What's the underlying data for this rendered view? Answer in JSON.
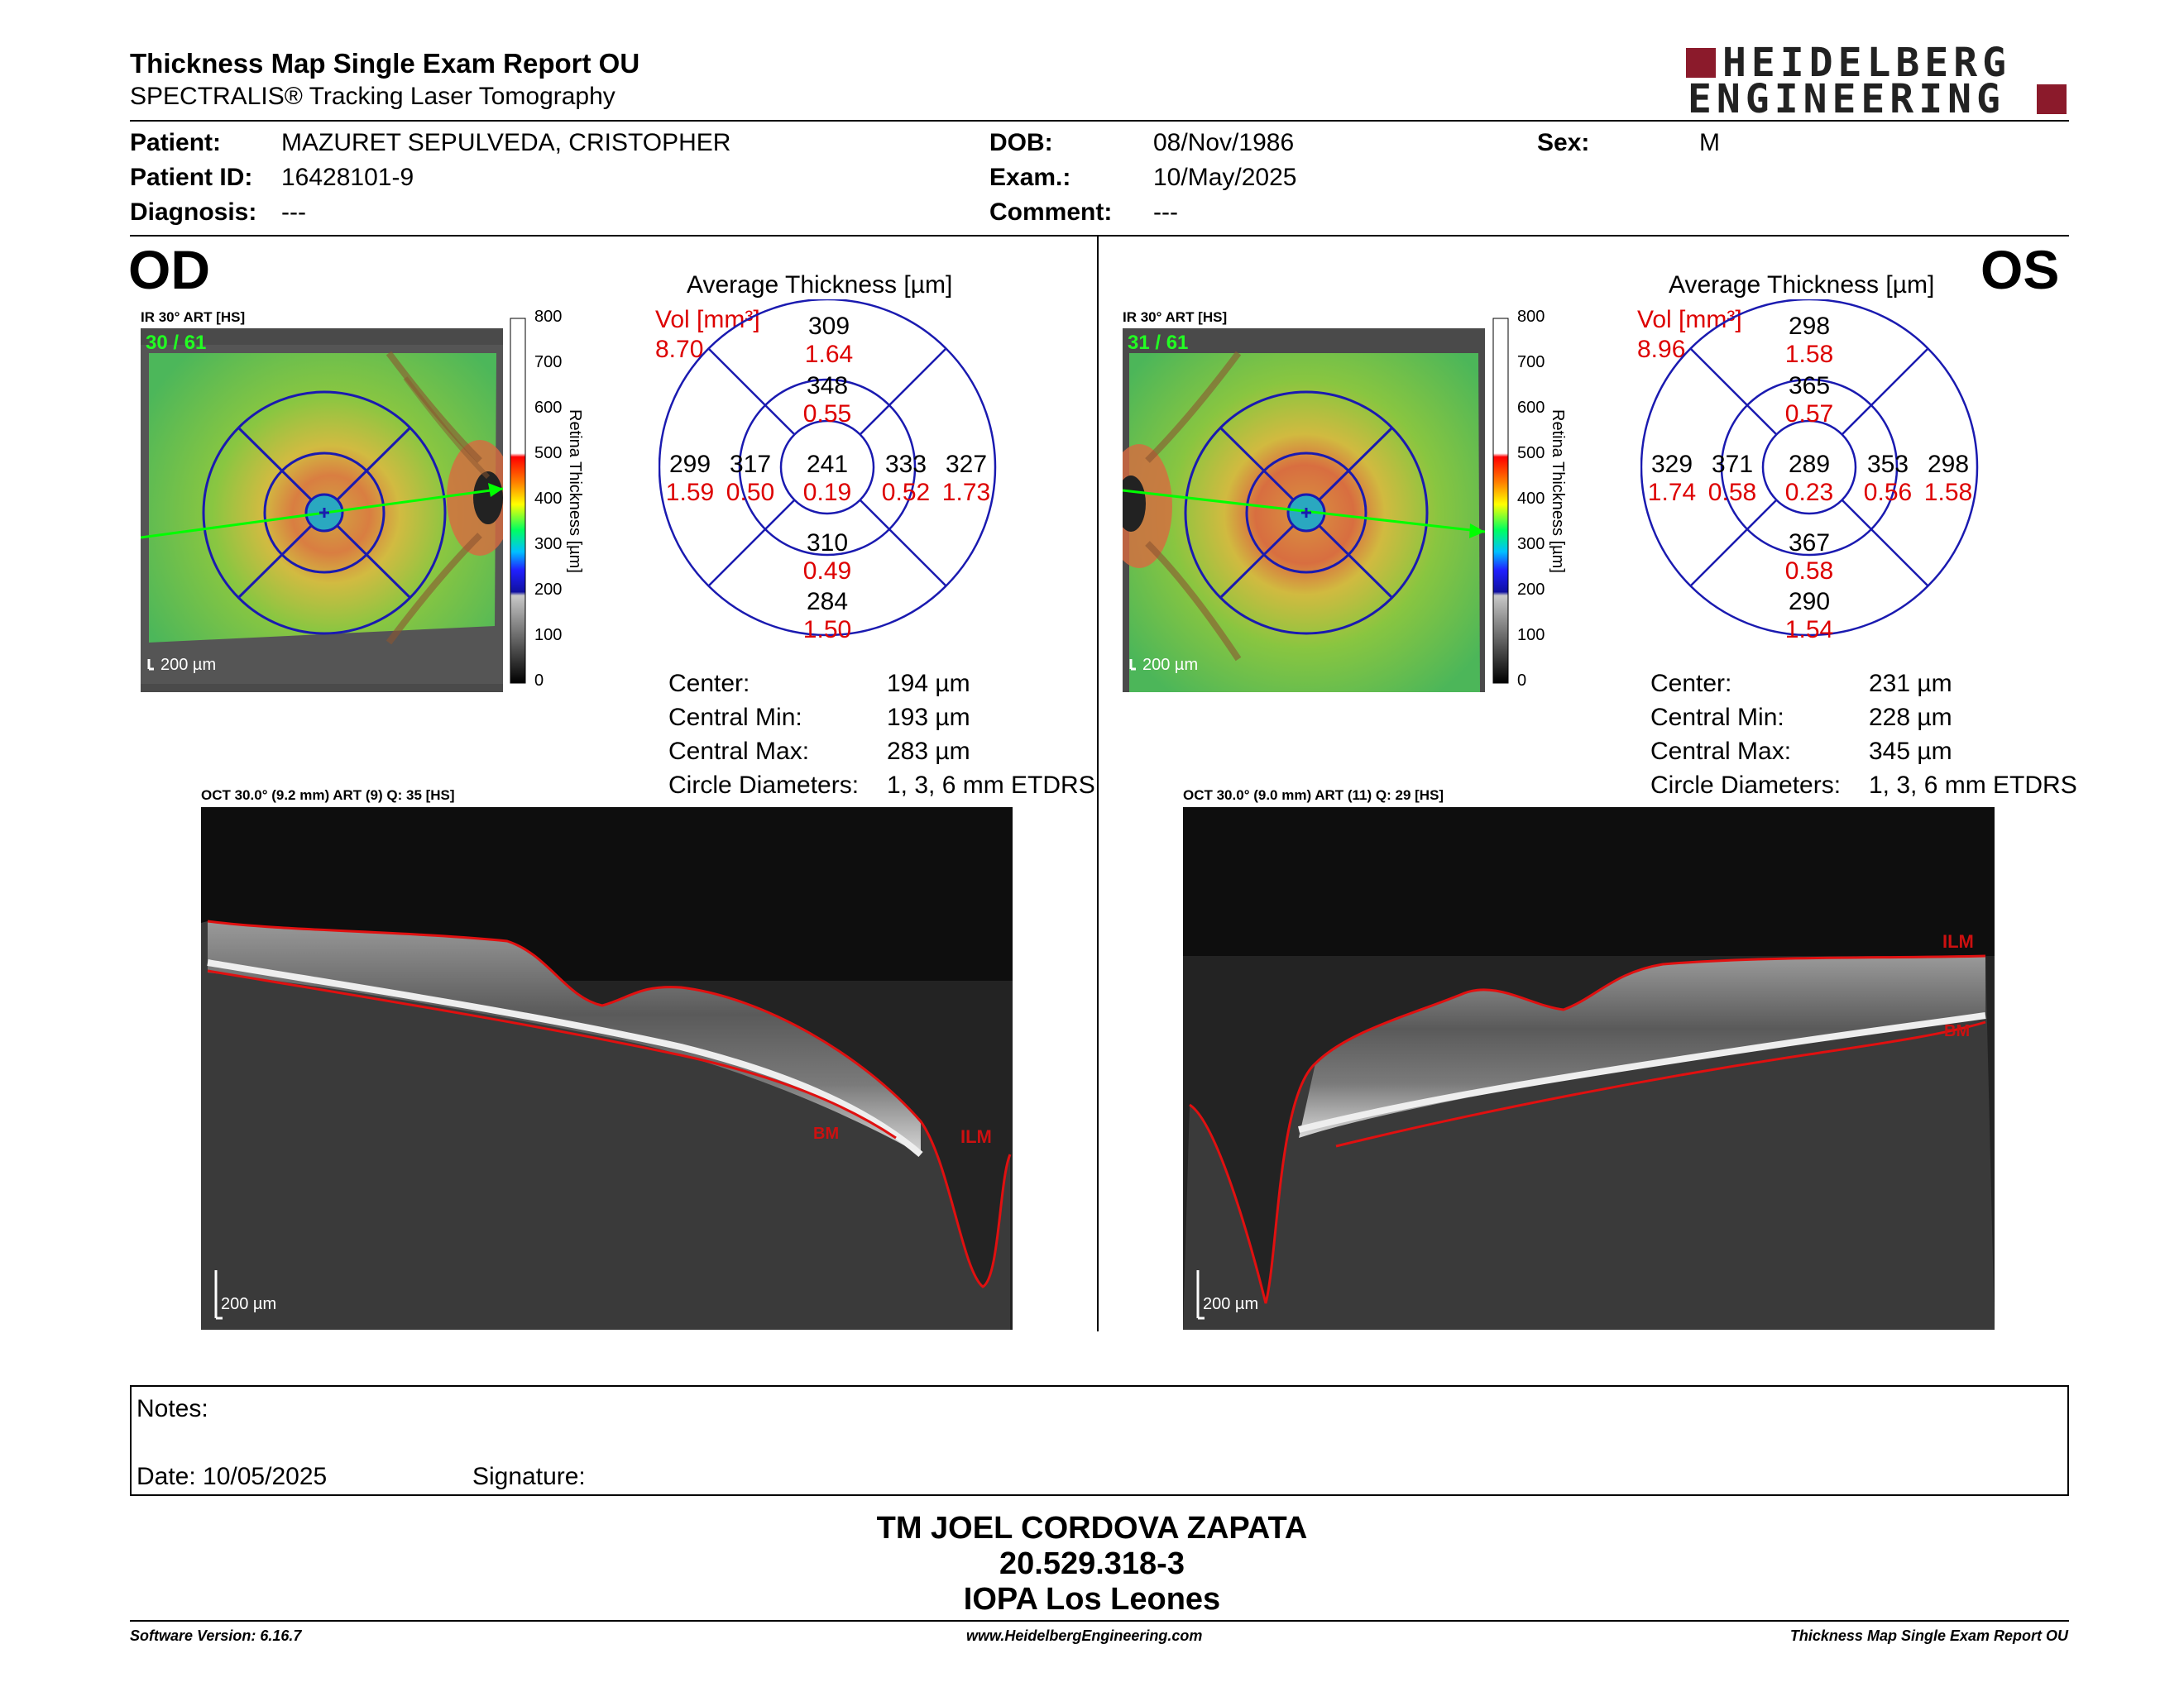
{
  "header": {
    "title": "Thickness Map Single Exam Report OU",
    "subtitle": "SPECTRALIS® Tracking Laser Tomography",
    "logo_line1": "HEIDELBERG",
    "logo_line2": "ENGINEERING",
    "logo_color": "#8b1a2b"
  },
  "patient": {
    "patient_label": "Patient:",
    "patient": "MAZURET SEPULVEDA, CRISTOPHER",
    "id_label": "Patient ID:",
    "id": "16428101-9",
    "diagnosis_label": "Diagnosis:",
    "diagnosis": "---",
    "dob_label": "DOB:",
    "dob": "08/Nov/1986",
    "exam_label": "Exam.:",
    "exam": "10/May/2025",
    "comment_label": "Comment:",
    "comment": "---",
    "sex_label": "Sex:",
    "sex": "M"
  },
  "colorbar": {
    "ticks": [
      "800",
      "700",
      "600",
      "500",
      "400",
      "300",
      "200",
      "100",
      "0"
    ],
    "label": "Retina Thickness [µm]"
  },
  "od": {
    "eye_label": "OD",
    "ir_label": "IR 30° ART [HS]",
    "frame_label": "30 / 61",
    "scale_label": "200 µm",
    "avg_title": "Average Thickness [µm]",
    "vol_label": "Vol [mm³]",
    "vol_total": "8.70",
    "sectors": {
      "center": {
        "t": "241",
        "v": "0.19"
      },
      "inner_sup": {
        "t": "348",
        "v": "0.55"
      },
      "inner_inf": {
        "t": "310",
        "v": "0.49"
      },
      "inner_left": {
        "t": "317",
        "v": "0.50"
      },
      "inner_right": {
        "t": "333",
        "v": "0.52"
      },
      "outer_sup": {
        "t": "309",
        "v": "1.64"
      },
      "outer_inf": {
        "t": "284",
        "v": "1.50"
      },
      "outer_left": {
        "t": "299",
        "v": "1.59"
      },
      "outer_right": {
        "t": "327",
        "v": "1.73"
      }
    },
    "stats": {
      "center_label": "Center:",
      "center": "194 µm",
      "min_label": "Central Min:",
      "min": "193 µm",
      "max_label": "Central Max:",
      "max": "283 µm",
      "diam_label": "Circle Diameters:",
      "diam": "1, 3, 6 mm ETDRS"
    },
    "oct_label": "OCT 30.0° (9.2 mm) ART (9) Q: 35 [HS]",
    "oct_scale": "200 µm",
    "ilm": "ILM",
    "bm": "BM"
  },
  "os": {
    "eye_label": "OS",
    "ir_label": "IR 30° ART [HS]",
    "frame_label": "31 / 61",
    "scale_label": "200 µm",
    "avg_title": "Average Thickness [µm]",
    "vol_label": "Vol [mm³]",
    "vol_total": "8.96",
    "sectors": {
      "center": {
        "t": "289",
        "v": "0.23"
      },
      "inner_sup": {
        "t": "365",
        "v": "0.57"
      },
      "inner_inf": {
        "t": "367",
        "v": "0.58"
      },
      "inner_left": {
        "t": "371",
        "v": "0.58"
      },
      "inner_right": {
        "t": "353",
        "v": "0.56"
      },
      "outer_sup": {
        "t": "298",
        "v": "1.58"
      },
      "outer_inf": {
        "t": "290",
        "v": "1.54"
      },
      "outer_left": {
        "t": "329",
        "v": "1.74"
      },
      "outer_right": {
        "t": "298",
        "v": "1.58"
      }
    },
    "stats": {
      "center_label": "Center:",
      "center": "231 µm",
      "min_label": "Central Min:",
      "min": "228 µm",
      "max_label": "Central Max:",
      "max": "345 µm",
      "diam_label": "Circle Diameters:",
      "diam": "1, 3, 6 mm ETDRS"
    },
    "oct_label": "OCT 30.0° (9.0 mm) ART (11) Q: 29 [HS]",
    "oct_scale": "200 µm",
    "ilm": "ILM",
    "bm": "BM"
  },
  "notes": {
    "notes_label": "Notes:",
    "date_label": "Date: 10/05/2025",
    "signature_label": "Signature:"
  },
  "signature_block": {
    "name": "TM JOEL CORDOVA ZAPATA",
    "rut": "20.529.318-3",
    "institution": "IOPA Los Leones"
  },
  "footer": {
    "software": "Software Version: 6.16.7",
    "website": "www.HeidelbergEngineering.com",
    "report": "Thickness Map Single Exam Report OU"
  },
  "colors": {
    "grid_blue": "#1a1ab0",
    "vol_red": "#dd0000",
    "segment_red": "#e01010",
    "accent_green": "#00ff00"
  }
}
